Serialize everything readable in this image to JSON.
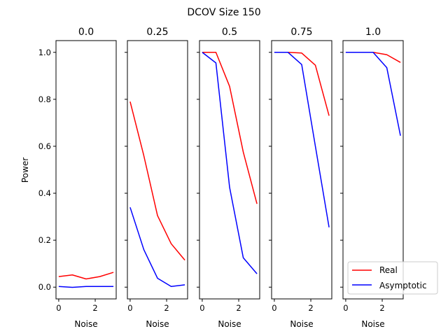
{
  "chart_data": {
    "type": "line",
    "title": "DCOV Size 150",
    "ylabel": "Power",
    "xlabel": "Noise",
    "x": [
      0,
      0.75,
      1.5,
      2.25,
      3.0
    ],
    "xlim": [
      -0.15,
      3.15
    ],
    "ylim": [
      -0.05,
      1.05
    ],
    "xticks": [
      0,
      2
    ],
    "yticks": [
      0.0,
      0.2,
      0.4,
      0.6,
      0.8,
      1.0
    ],
    "ytick_labels": [
      "0.0",
      "0.2",
      "0.4",
      "0.6",
      "0.8",
      "1.0"
    ],
    "legend": {
      "position": "lower-right",
      "entries": [
        "Real",
        "Asymptotic"
      ]
    },
    "colors": {
      "Real": "#ff0000",
      "Asymptotic": "#0000ff"
    },
    "panels": [
      {
        "title": "0.0",
        "series": [
          {
            "name": "Real",
            "values": [
              0.045,
              0.052,
              0.035,
              0.045,
              0.063
            ]
          },
          {
            "name": "Asymptotic",
            "values": [
              0.003,
              -0.001,
              0.003,
              0.003,
              0.003
            ]
          }
        ]
      },
      {
        "title": "0.25",
        "series": [
          {
            "name": "Real",
            "values": [
              0.79,
              0.56,
              0.305,
              0.185,
              0.115
            ]
          },
          {
            "name": "Asymptotic",
            "values": [
              0.34,
              0.16,
              0.038,
              0.003,
              0.01
            ]
          }
        ]
      },
      {
        "title": "0.5",
        "series": [
          {
            "name": "Real",
            "values": [
              1.0,
              1.0,
              0.855,
              0.575,
              0.355
            ]
          },
          {
            "name": "Asymptotic",
            "values": [
              1.0,
              0.955,
              0.425,
              0.125,
              0.057
            ]
          }
        ]
      },
      {
        "title": "0.75",
        "series": [
          {
            "name": "Real",
            "values": [
              1.0,
              1.0,
              0.997,
              0.945,
              0.73
            ]
          },
          {
            "name": "Asymptotic",
            "values": [
              1.0,
              1.0,
              0.948,
              0.6,
              0.255
            ]
          }
        ]
      },
      {
        "title": "1.0",
        "series": [
          {
            "name": "Real",
            "values": [
              1.0,
              1.0,
              1.0,
              0.99,
              0.957
            ]
          },
          {
            "name": "Asymptotic",
            "values": [
              1.0,
              1.0,
              1.0,
              0.935,
              0.645
            ]
          }
        ]
      }
    ]
  }
}
